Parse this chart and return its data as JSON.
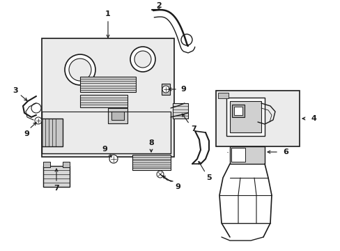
{
  "bg_color": "#ffffff",
  "lc": "#1a1a1a",
  "gray_fill": "#d8d8d8",
  "light_gray": "#ebebeb",
  "fig_w": 4.89,
  "fig_h": 3.6,
  "dpi": 100
}
